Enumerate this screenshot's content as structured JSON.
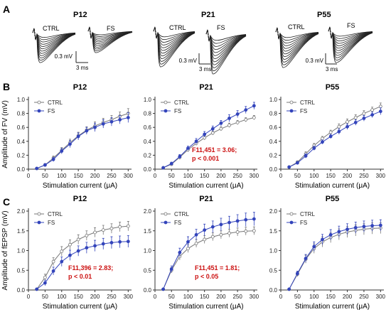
{
  "panel_letters": [
    "A",
    "B",
    "C"
  ],
  "traces": {
    "ages": [
      "P12",
      "P21",
      "P55"
    ],
    "groups": [
      "CTRL",
      "FS"
    ],
    "scale_v": "0.3 mV",
    "scale_t": "3 ms"
  },
  "colors": {
    "ctrl": "#777777",
    "fs": "#3344bb",
    "stat": "#cc1111",
    "axis": "#333333"
  },
  "chart_data": [
    {
      "type": "line",
      "panel": "B",
      "title": "P12",
      "xlabel": "Stimulation current (μA)",
      "ylabel": "Amplitude of FV (mV)",
      "x": [
        25,
        50,
        75,
        100,
        125,
        150,
        175,
        200,
        225,
        250,
        275,
        300
      ],
      "xticks": [
        0,
        50,
        100,
        150,
        200,
        250,
        300
      ],
      "yticks": [
        0.0,
        0.2,
        0.4,
        0.6,
        0.8,
        1.0
      ],
      "xlim": [
        0,
        310
      ],
      "ylim": [
        0,
        1.0
      ],
      "legend": "top-left",
      "annotation": [],
      "series": [
        {
          "name": "CTRL",
          "values": [
            0.01,
            0.06,
            0.16,
            0.27,
            0.38,
            0.48,
            0.56,
            0.62,
            0.67,
            0.71,
            0.76,
            0.8
          ],
          "err": [
            0.01,
            0.02,
            0.03,
            0.04,
            0.05,
            0.05,
            0.05,
            0.06,
            0.06,
            0.06,
            0.06,
            0.07
          ]
        },
        {
          "name": "FS",
          "values": [
            0.01,
            0.06,
            0.14,
            0.26,
            0.36,
            0.47,
            0.55,
            0.6,
            0.65,
            0.68,
            0.71,
            0.74
          ],
          "err": [
            0.01,
            0.02,
            0.03,
            0.04,
            0.05,
            0.05,
            0.05,
            0.06,
            0.06,
            0.06,
            0.06,
            0.07
          ]
        }
      ]
    },
    {
      "type": "line",
      "panel": "B",
      "title": "P21",
      "xlabel": "Stimulation current (μA)",
      "ylabel": "",
      "x": [
        25,
        50,
        75,
        100,
        125,
        150,
        175,
        200,
        225,
        250,
        275,
        300
      ],
      "xticks": [
        0,
        50,
        100,
        150,
        200,
        250,
        300
      ],
      "yticks": [
        0.0,
        0.2,
        0.4,
        0.6,
        0.8,
        1.0
      ],
      "xlim": [
        0,
        310
      ],
      "ylim": [
        0,
        1.0
      ],
      "legend": "top-left",
      "annotation": [
        "F11,451 = 3.06;",
        "p < 0.001"
      ],
      "series": [
        {
          "name": "CTRL",
          "values": [
            0.02,
            0.07,
            0.17,
            0.28,
            0.37,
            0.45,
            0.52,
            0.58,
            0.63,
            0.67,
            0.71,
            0.74
          ],
          "err": [
            0.01,
            0.02,
            0.03,
            0.03,
            0.03,
            0.03,
            0.03,
            0.03,
            0.03,
            0.03,
            0.03,
            0.03
          ]
        },
        {
          "name": "FS",
          "values": [
            0.02,
            0.08,
            0.18,
            0.3,
            0.4,
            0.5,
            0.58,
            0.66,
            0.73,
            0.79,
            0.85,
            0.91
          ],
          "err": [
            0.01,
            0.02,
            0.03,
            0.03,
            0.04,
            0.04,
            0.04,
            0.04,
            0.05,
            0.05,
            0.05,
            0.05
          ]
        }
      ]
    },
    {
      "type": "line",
      "panel": "B",
      "title": "P55",
      "xlabel": "Stimulation current (μA)",
      "ylabel": "",
      "x": [
        25,
        50,
        75,
        100,
        125,
        150,
        175,
        200,
        225,
        250,
        275,
        300
      ],
      "xticks": [
        0,
        50,
        100,
        150,
        200,
        250,
        300
      ],
      "yticks": [
        0.0,
        0.2,
        0.4,
        0.6,
        0.8,
        1.0
      ],
      "xlim": [
        0,
        310
      ],
      "ylim": [
        0,
        1.0
      ],
      "legend": "top-left",
      "annotation": [],
      "series": [
        {
          "name": "CTRL",
          "values": [
            0.03,
            0.1,
            0.22,
            0.34,
            0.44,
            0.53,
            0.61,
            0.68,
            0.74,
            0.8,
            0.85,
            0.9
          ],
          "err": [
            0.01,
            0.02,
            0.03,
            0.03,
            0.03,
            0.03,
            0.04,
            0.04,
            0.04,
            0.04,
            0.04,
            0.05
          ]
        },
        {
          "name": "FS",
          "values": [
            0.03,
            0.09,
            0.19,
            0.3,
            0.39,
            0.47,
            0.54,
            0.61,
            0.67,
            0.73,
            0.78,
            0.83
          ],
          "err": [
            0.01,
            0.02,
            0.03,
            0.03,
            0.03,
            0.03,
            0.04,
            0.04,
            0.04,
            0.04,
            0.04,
            0.05
          ]
        }
      ]
    },
    {
      "type": "line",
      "panel": "C",
      "title": "P12",
      "xlabel": "Stimulation current (μA)",
      "ylabel": "Amplitude of fEPSP (mV)",
      "x": [
        25,
        50,
        75,
        100,
        125,
        150,
        175,
        200,
        225,
        250,
        275,
        300
      ],
      "xticks": [
        0,
        50,
        100,
        150,
        200,
        250,
        300
      ],
      "yticks": [
        0.0,
        0.5,
        1.0,
        1.5,
        2.0
      ],
      "xlim": [
        0,
        310
      ],
      "ylim": [
        0,
        2.0
      ],
      "legend": "top-left",
      "annotation": [
        "F11,396 = 2.83;",
        "p < 0.01"
      ],
      "series": [
        {
          "name": "CTRL",
          "values": [
            0.02,
            0.32,
            0.72,
            0.98,
            1.15,
            1.28,
            1.38,
            1.46,
            1.52,
            1.56,
            1.6,
            1.62
          ],
          "err": [
            0.02,
            0.08,
            0.1,
            0.12,
            0.12,
            0.12,
            0.12,
            0.12,
            0.12,
            0.12,
            0.12,
            0.12
          ]
        },
        {
          "name": "FS",
          "values": [
            0.02,
            0.18,
            0.48,
            0.72,
            0.88,
            0.99,
            1.07,
            1.12,
            1.17,
            1.2,
            1.22,
            1.23
          ],
          "err": [
            0.02,
            0.07,
            0.1,
            0.12,
            0.13,
            0.13,
            0.14,
            0.14,
            0.14,
            0.15,
            0.15,
            0.15
          ]
        }
      ]
    },
    {
      "type": "line",
      "panel": "C",
      "title": "P21",
      "xlabel": "Stimulation current (μA)",
      "ylabel": "",
      "x": [
        25,
        50,
        75,
        100,
        125,
        150,
        175,
        200,
        225,
        250,
        275,
        300
      ],
      "xticks": [
        0,
        50,
        100,
        150,
        200,
        250,
        300
      ],
      "yticks": [
        0.0,
        0.5,
        1.0,
        1.5,
        2.0
      ],
      "xlim": [
        0,
        310
      ],
      "ylim": [
        0,
        2.0
      ],
      "legend": "top-left",
      "annotation": [
        "F11,451 = 1.81;",
        "p < 0.05"
      ],
      "series": [
        {
          "name": "CTRL",
          "values": [
            0.02,
            0.5,
            0.85,
            1.05,
            1.18,
            1.28,
            1.35,
            1.4,
            1.44,
            1.47,
            1.49,
            1.5
          ],
          "err": [
            0.02,
            0.07,
            0.09,
            0.1,
            0.1,
            0.1,
            0.1,
            0.1,
            0.1,
            0.1,
            0.1,
            0.1
          ]
        },
        {
          "name": "FS",
          "values": [
            0.02,
            0.53,
            0.95,
            1.22,
            1.4,
            1.52,
            1.6,
            1.66,
            1.71,
            1.75,
            1.78,
            1.8
          ],
          "err": [
            0.02,
            0.08,
            0.11,
            0.13,
            0.14,
            0.15,
            0.15,
            0.16,
            0.16,
            0.16,
            0.17,
            0.17
          ]
        }
      ]
    },
    {
      "type": "line",
      "panel": "C",
      "title": "P55",
      "xlabel": "Stimulation current (μA)",
      "ylabel": "",
      "x": [
        25,
        50,
        75,
        100,
        125,
        150,
        175,
        200,
        225,
        250,
        275,
        300
      ],
      "xticks": [
        0,
        50,
        100,
        150,
        200,
        250,
        300
      ],
      "yticks": [
        0.0,
        0.5,
        1.0,
        1.5,
        2.0
      ],
      "xlim": [
        0,
        310
      ],
      "ylim": [
        0,
        2.0
      ],
      "legend": "top-left",
      "annotation": [],
      "series": [
        {
          "name": "CTRL",
          "values": [
            0.02,
            0.4,
            0.78,
            1.05,
            1.22,
            1.33,
            1.41,
            1.47,
            1.51,
            1.54,
            1.56,
            1.57
          ],
          "err": [
            0.02,
            0.06,
            0.1,
            0.12,
            0.13,
            0.13,
            0.14,
            0.14,
            0.14,
            0.14,
            0.14,
            0.14
          ]
        },
        {
          "name": "FS",
          "values": [
            0.02,
            0.42,
            0.8,
            1.1,
            1.28,
            1.4,
            1.48,
            1.54,
            1.58,
            1.61,
            1.63,
            1.64
          ],
          "err": [
            0.02,
            0.06,
            0.1,
            0.12,
            0.13,
            0.13,
            0.14,
            0.14,
            0.14,
            0.14,
            0.14,
            0.14
          ]
        }
      ]
    }
  ]
}
